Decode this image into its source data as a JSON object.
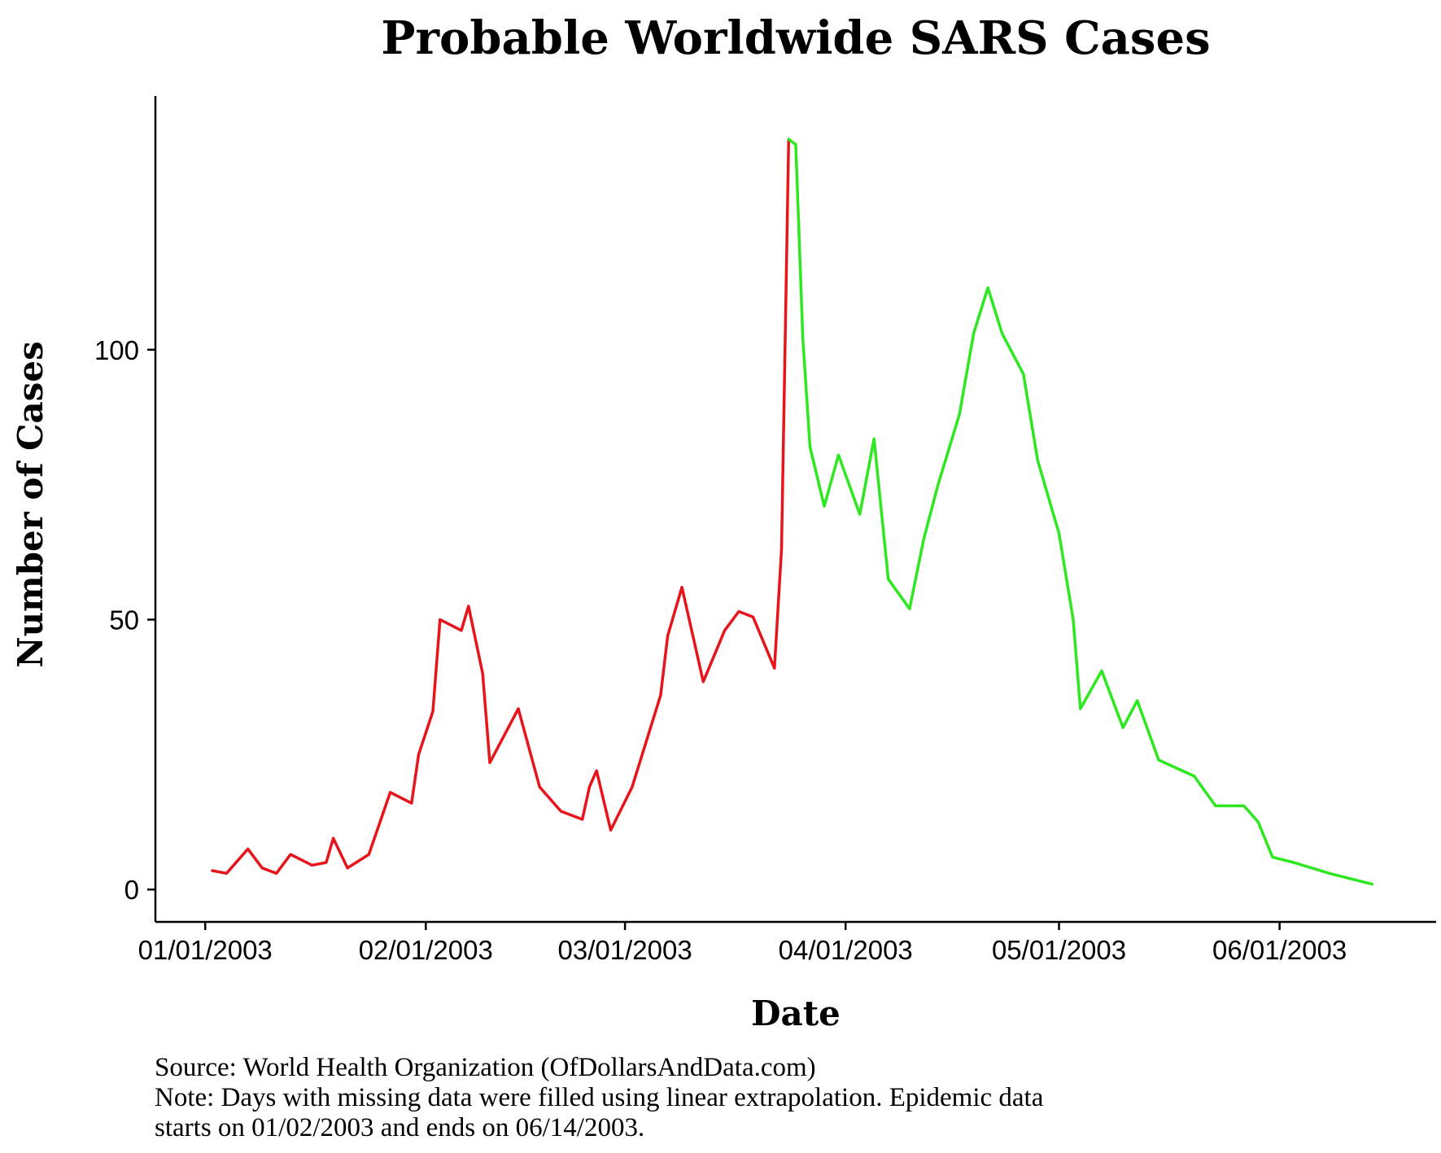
{
  "chart_data": {
    "type": "line",
    "title": "Probable Worldwide SARS Cases",
    "xlabel": "Date",
    "ylabel": "Number of Cases",
    "x_ticks": [
      {
        "date": "2003-01-01",
        "label": "01/01/2003"
      },
      {
        "date": "2003-02-01",
        "label": "02/01/2003"
      },
      {
        "date": "2003-03-01",
        "label": "03/01/2003"
      },
      {
        "date": "2003-04-01",
        "label": "04/01/2003"
      },
      {
        "date": "2003-05-01",
        "label": "05/01/2003"
      },
      {
        "date": "2003-06-01",
        "label": "06/01/2003"
      }
    ],
    "y_ticks": [
      0,
      50,
      100
    ],
    "xlim": [
      "2002-12-25",
      "2003-06-23"
    ],
    "ylim": [
      -6,
      147
    ],
    "grid": false,
    "legend": "none",
    "series": [
      {
        "color": "#e8141b",
        "points": [
          {
            "x": "2003-01-02",
            "y": 3.5
          },
          {
            "x": "2003-01-04",
            "y": 3
          },
          {
            "x": "2003-01-07",
            "y": 7.5
          },
          {
            "x": "2003-01-09",
            "y": 4
          },
          {
            "x": "2003-01-11",
            "y": 3
          },
          {
            "x": "2003-01-13",
            "y": 6.5
          },
          {
            "x": "2003-01-16",
            "y": 4.5
          },
          {
            "x": "2003-01-18",
            "y": 5
          },
          {
            "x": "2003-01-19",
            "y": 9.5
          },
          {
            "x": "2003-01-21",
            "y": 4
          },
          {
            "x": "2003-01-24",
            "y": 6.5
          },
          {
            "x": "2003-01-27",
            "y": 18
          },
          {
            "x": "2003-01-30",
            "y": 16
          },
          {
            "x": "2003-01-31",
            "y": 25
          },
          {
            "x": "2003-02-02",
            "y": 33
          },
          {
            "x": "2003-02-03",
            "y": 50
          },
          {
            "x": "2003-02-06",
            "y": 48
          },
          {
            "x": "2003-02-07",
            "y": 52.5
          },
          {
            "x": "2003-02-09",
            "y": 40
          },
          {
            "x": "2003-02-10",
            "y": 23.5
          },
          {
            "x": "2003-02-14",
            "y": 33.5
          },
          {
            "x": "2003-02-17",
            "y": 19
          },
          {
            "x": "2003-02-20",
            "y": 14.5
          },
          {
            "x": "2003-02-23",
            "y": 13
          },
          {
            "x": "2003-02-24",
            "y": 19
          },
          {
            "x": "2003-02-25",
            "y": 22
          },
          {
            "x": "2003-02-27",
            "y": 11
          },
          {
            "x": "2003-03-02",
            "y": 19
          },
          {
            "x": "2003-03-06",
            "y": 36
          },
          {
            "x": "2003-03-07",
            "y": 47
          },
          {
            "x": "2003-03-09",
            "y": 56
          },
          {
            "x": "2003-03-12",
            "y": 38.5
          },
          {
            "x": "2003-03-15",
            "y": 48
          },
          {
            "x": "2003-03-17",
            "y": 51.5
          },
          {
            "x": "2003-03-19",
            "y": 50.5
          },
          {
            "x": "2003-03-22",
            "y": 41
          },
          {
            "x": "2003-03-23",
            "y": 63
          },
          {
            "x": "2003-03-24",
            "y": 139
          }
        ]
      },
      {
        "color": "#2ee81f",
        "points": [
          {
            "x": "2003-03-24",
            "y": 139
          },
          {
            "x": "2003-03-25",
            "y": 138
          },
          {
            "x": "2003-03-26",
            "y": 102
          },
          {
            "x": "2003-03-27",
            "y": 82
          },
          {
            "x": "2003-03-29",
            "y": 71
          },
          {
            "x": "2003-03-31",
            "y": 80.5
          },
          {
            "x": "2003-04-03",
            "y": 69.5
          },
          {
            "x": "2003-04-05",
            "y": 83.5
          },
          {
            "x": "2003-04-07",
            "y": 57.5
          },
          {
            "x": "2003-04-10",
            "y": 52
          },
          {
            "x": "2003-04-12",
            "y": 65
          },
          {
            "x": "2003-04-14",
            "y": 75
          },
          {
            "x": "2003-04-17",
            "y": 88
          },
          {
            "x": "2003-04-19",
            "y": 103
          },
          {
            "x": "2003-04-21",
            "y": 111.5
          },
          {
            "x": "2003-04-23",
            "y": 103
          },
          {
            "x": "2003-04-26",
            "y": 95.5
          },
          {
            "x": "2003-04-28",
            "y": 79.5
          },
          {
            "x": "2003-05-01",
            "y": 66
          },
          {
            "x": "2003-05-03",
            "y": 50
          },
          {
            "x": "2003-05-04",
            "y": 33.5
          },
          {
            "x": "2003-05-07",
            "y": 40.5
          },
          {
            "x": "2003-05-10",
            "y": 30
          },
          {
            "x": "2003-05-12",
            "y": 35
          },
          {
            "x": "2003-05-15",
            "y": 24
          },
          {
            "x": "2003-05-20",
            "y": 21
          },
          {
            "x": "2003-05-23",
            "y": 15.5
          },
          {
            "x": "2003-05-27",
            "y": 15.5
          },
          {
            "x": "2003-05-29",
            "y": 12.5
          },
          {
            "x": "2003-05-31",
            "y": 6
          },
          {
            "x": "2003-06-03",
            "y": 5
          },
          {
            "x": "2003-06-08",
            "y": 3
          },
          {
            "x": "2003-06-14",
            "y": 1
          }
        ]
      }
    ]
  },
  "caption": {
    "line1": "Source: World Health Organization (OfDollarsAndData.com)",
    "line2": "Note: Days with missing data were filled using linear extrapolation. Epidemic data",
    "line3": "starts on 01/02/2003 and ends on 06/14/2003."
  }
}
